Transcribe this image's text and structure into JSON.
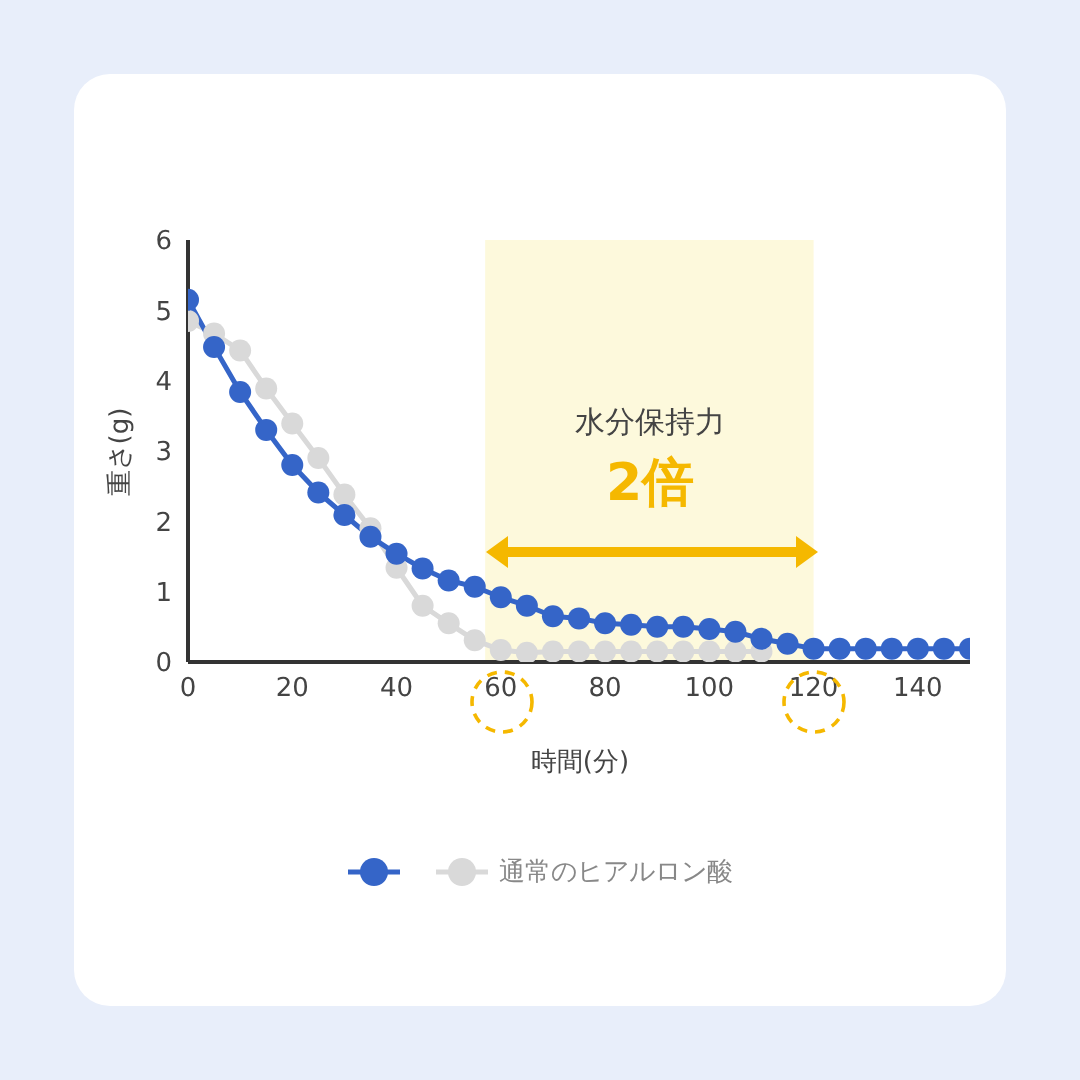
{
  "chart_data": {
    "type": "line",
    "xlabel": "時間(分)",
    "ylabel": "重さ(g)",
    "x": [
      0,
      5,
      10,
      15,
      20,
      25,
      30,
      35,
      40,
      45,
      50,
      55,
      60,
      65,
      70,
      75,
      80,
      85,
      90,
      95,
      100,
      105,
      110,
      115,
      120,
      125,
      130,
      135,
      140,
      145,
      150
    ],
    "series": [
      {
        "color": "#3565c8",
        "values": [
          5.15,
          4.48,
          3.84,
          3.3,
          2.8,
          2.41,
          2.09,
          1.78,
          1.54,
          1.33,
          1.16,
          1.07,
          0.92,
          0.8,
          0.65,
          0.62,
          0.55,
          0.53,
          0.5,
          0.5,
          0.47,
          0.43,
          0.33,
          0.26,
          0.19,
          0.19,
          0.19,
          0.19,
          0.19,
          0.19,
          0.19
        ]
      },
      {
        "name": "通常のヒアルロン酸",
        "color": "#d9d9d9",
        "values": [
          4.85,
          4.67,
          4.43,
          3.89,
          3.39,
          2.9,
          2.38,
          1.9,
          1.34,
          0.8,
          0.55,
          0.31,
          0.17,
          0.13,
          0.15,
          0.15,
          0.15,
          0.15,
          0.15,
          0.15,
          0.15,
          0.15,
          0.15,
          null,
          null,
          null,
          null,
          null,
          null,
          null,
          null
        ]
      }
    ],
    "xlim": [
      0,
      150
    ],
    "xticks": [
      0,
      20,
      40,
      60,
      80,
      100,
      120,
      140
    ],
    "ylim": [
      0,
      6
    ],
    "yticks": [
      0,
      1,
      2,
      3,
      4,
      5,
      6
    ],
    "bands": [
      {
        "axis": "x",
        "from": 57,
        "to": 120,
        "color": "#fdf9dc"
      }
    ],
    "annotations": [
      "水分保持力",
      "2倍"
    ],
    "marker": "circle",
    "legend": "bottom"
  }
}
